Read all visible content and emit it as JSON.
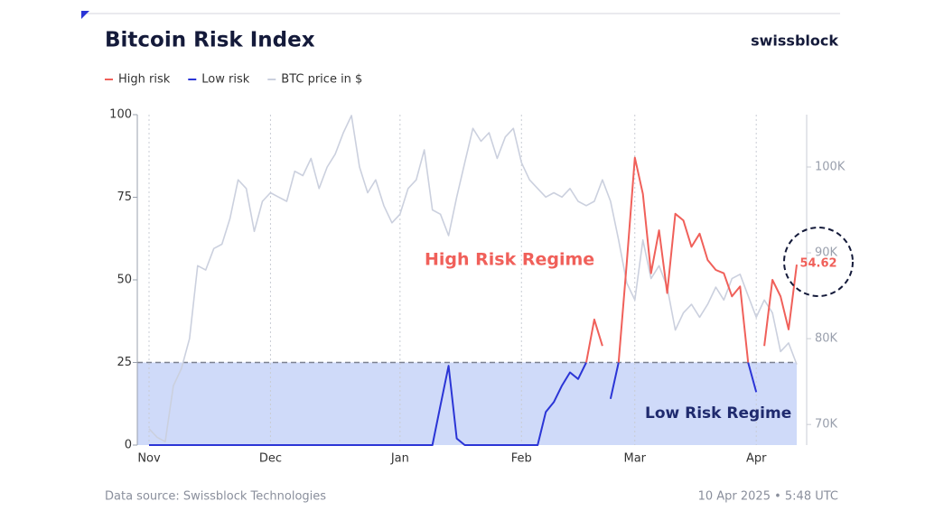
{
  "chart_data": {
    "type": "line",
    "title": "Bitcoin Risk Index",
    "brand": "swissblock",
    "source": "Data source: Swissblock Technologies",
    "timestamp": "10 Apr 2025 • 5:48 UTC",
    "annotations": [
      "High Risk Regime",
      "Low Risk Regime"
    ],
    "threshold": 25,
    "threshold_color": "#cfdaf9",
    "categories": [
      "Nov",
      null,
      null,
      null,
      null,
      null,
      null,
      null,
      null,
      null,
      null,
      null,
      null,
      null,
      null,
      "Dec",
      null,
      null,
      null,
      null,
      null,
      null,
      null,
      null,
      null,
      null,
      null,
      null,
      null,
      null,
      null,
      "Jan",
      null,
      null,
      null,
      null,
      null,
      null,
      null,
      null,
      null,
      null,
      null,
      null,
      null,
      null,
      "Feb",
      null,
      null,
      null,
      null,
      null,
      null,
      null,
      null,
      null,
      null,
      null,
      null,
      null,
      "Mar",
      null,
      null,
      null,
      null,
      null,
      null,
      null,
      null,
      null,
      null,
      null,
      null,
      null,
      null,
      "Apr",
      null,
      null,
      null,
      null,
      null
    ],
    "series": [
      {
        "name": "High risk",
        "color": "#f0605a",
        "values": [
          null,
          null,
          null,
          null,
          null,
          null,
          null,
          null,
          null,
          null,
          null,
          null,
          null,
          null,
          null,
          null,
          null,
          null,
          null,
          null,
          null,
          null,
          null,
          null,
          null,
          null,
          null,
          null,
          null,
          null,
          null,
          null,
          null,
          null,
          null,
          null,
          null,
          null,
          null,
          null,
          null,
          null,
          null,
          null,
          null,
          null,
          null,
          null,
          null,
          null,
          null,
          null,
          null,
          null,
          25,
          38,
          30,
          null,
          25,
          55,
          87,
          76,
          52,
          65,
          46,
          70,
          68,
          60,
          64,
          56,
          53,
          52,
          45,
          48,
          25,
          null,
          30,
          50,
          45,
          35,
          54.62
        ]
      },
      {
        "name": "Low risk",
        "color": "#2b35d6",
        "values": [
          0,
          0,
          0,
          0,
          0,
          0,
          0,
          0,
          0,
          0,
          0,
          0,
          0,
          0,
          0,
          0,
          0,
          0,
          0,
          0,
          0,
          0,
          0,
          0,
          0,
          0,
          0,
          0,
          0,
          0,
          0,
          0,
          0,
          0,
          0,
          0,
          12,
          24,
          2,
          0,
          0,
          0,
          0,
          0,
          0,
          0,
          0,
          0,
          0,
          10,
          13,
          18,
          22,
          20,
          25,
          null,
          null,
          14,
          25,
          null,
          null,
          null,
          null,
          null,
          null,
          null,
          null,
          null,
          null,
          null,
          null,
          null,
          null,
          null,
          25,
          16,
          null,
          null,
          null,
          null,
          null
        ]
      },
      {
        "name": "BTC price in $",
        "color": "#cbd0de",
        "axis": "y2",
        "values": [
          69500,
          68500,
          68000,
          74500,
          76500,
          80000,
          88500,
          88000,
          90500,
          91000,
          94000,
          98500,
          97500,
          92500,
          96000,
          97000,
          96500,
          96000,
          99500,
          99000,
          101000,
          97500,
          100000,
          101500,
          104000,
          106000,
          100000,
          97000,
          98500,
          95500,
          93500,
          94500,
          97500,
          98500,
          102000,
          95000,
          94500,
          92000,
          96500,
          100500,
          104500,
          103000,
          104000,
          101000,
          103500,
          104500,
          100500,
          98500,
          97500,
          96500,
          97000,
          96500,
          97500,
          96000,
          95500,
          96000,
          98500,
          96000,
          91500,
          86500,
          84500,
          91500,
          87000,
          88500,
          86000,
          81000,
          83000,
          84000,
          82500,
          84000,
          86000,
          84500,
          87000,
          87500,
          85000,
          82500,
          84500,
          83000,
          78500,
          79500,
          77000
        ]
      }
    ],
    "ylim": [
      0,
      100
    ],
    "yticks": [
      0,
      25,
      50,
      75,
      100
    ],
    "y2lim": [
      67600,
      106100
    ],
    "y2ticks": [
      {
        "value": 70000,
        "label": "70K"
      },
      {
        "value": 80000,
        "label": "80K"
      },
      {
        "value": 90000,
        "label": "90K"
      },
      {
        "value": 100000,
        "label": "100K"
      }
    ]
  }
}
